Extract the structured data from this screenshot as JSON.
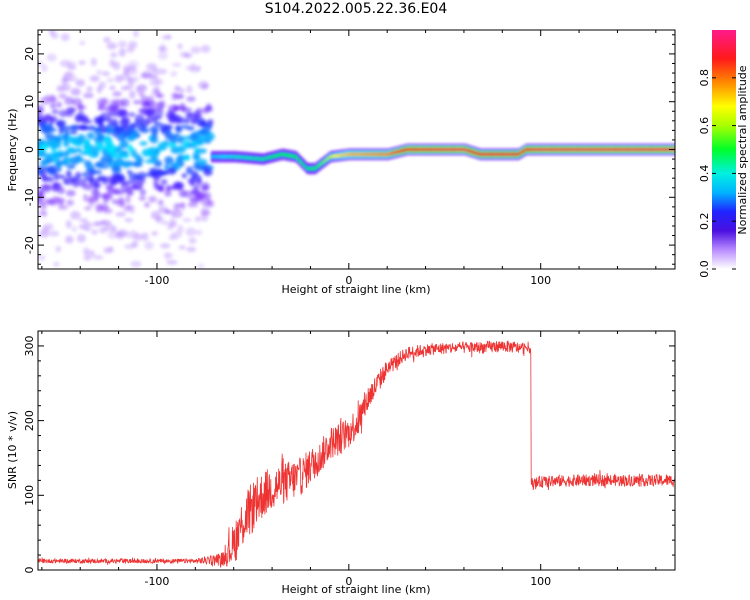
{
  "title": "S104.2022.005.22.36.E04",
  "colorbar": {
    "label": "Normalized spectral amplitude",
    "ticks": [
      "0.0",
      "0.2",
      "0.4",
      "0.6",
      "0.8"
    ],
    "tick_values": [
      0.0,
      0.2,
      0.4,
      0.6,
      0.8
    ],
    "range": [
      0.0,
      1.0
    ],
    "colors": [
      "#ffffff",
      "#7a2cff",
      "#2a23ff",
      "#00e5ff",
      "#00ff44",
      "#ffff00",
      "#ff7f00",
      "#ff0033",
      "#ff1a8c"
    ]
  },
  "chart_data": [
    {
      "type": "heatmap",
      "xlabel": "Height of straight line (km)",
      "ylabel": "Frequency (Hz)",
      "xlim": [
        -162,
        170
      ],
      "ylim": [
        -25,
        25
      ],
      "x_ticks": [
        "-100",
        "0",
        "100"
      ],
      "x_tick_values": [
        -100,
        0,
        100
      ],
      "y_ticks": [
        "-20",
        "-10",
        "0",
        "10",
        "20"
      ],
      "y_tick_values": [
        -20,
        -10,
        0,
        10,
        20
      ],
      "ridge": {
        "x": [
          -72,
          -60,
          -45,
          -35,
          -28,
          -22,
          -18,
          -10,
          0,
          20,
          30,
          60,
          68,
          88,
          92,
          100,
          140,
          170
        ],
        "y": [
          -1.5,
          -1.5,
          -2,
          -1,
          -1.5,
          -4,
          -4,
          -1.5,
          -1,
          -1,
          0,
          0,
          -1,
          -1,
          0,
          0,
          0,
          0
        ],
        "amplitude": [
          0.35,
          0.4,
          0.45,
          0.5,
          0.5,
          0.45,
          0.5,
          0.6,
          0.7,
          0.75,
          0.9,
          0.95,
          0.85,
          0.85,
          0.9,
          0.95,
          0.95,
          0.95
        ]
      },
      "scatter_region": {
        "x": [
          -162,
          -72
        ],
        "y": [
          -25,
          25
        ],
        "amplitude": [
          0.05,
          0.3
        ]
      }
    },
    {
      "type": "line",
      "xlabel": "Height of straight line (km)",
      "ylabel": "SNR (10 * v/v)",
      "xlim": [
        -162,
        170
      ],
      "ylim": [
        0,
        320
      ],
      "x_ticks": [
        "-100",
        "0",
        "100"
      ],
      "x_tick_values": [
        -100,
        0,
        100
      ],
      "y_ticks": [
        "0",
        "100",
        "200",
        "300"
      ],
      "y_tick_values": [
        0,
        100,
        200,
        300
      ],
      "series": [
        {
          "color": "#ee3333",
          "x": [
            -162,
            -120,
            -80,
            -65,
            -60,
            -55,
            -50,
            -45,
            -40,
            -35,
            -30,
            -25,
            -20,
            -15,
            -10,
            -5,
            0,
            5,
            10,
            15,
            20,
            25,
            30,
            40,
            50,
            60,
            70,
            80,
            90,
            94,
            95,
            96,
            100,
            120,
            140,
            160,
            170
          ],
          "y": [
            12,
            12,
            12,
            15,
            35,
            65,
            85,
            100,
            110,
            115,
            120,
            125,
            140,
            150,
            170,
            175,
            185,
            200,
            230,
            250,
            270,
            280,
            290,
            295,
            297,
            298,
            298,
            300,
            297,
            298,
            115,
            115,
            118,
            120,
            120,
            120,
            120
          ],
          "noise": [
            3,
            3,
            3,
            10,
            30,
            35,
            35,
            32,
            30,
            28,
            28,
            26,
            24,
            22,
            22,
            22,
            22,
            22,
            18,
            15,
            12,
            10,
            9,
            8,
            8,
            8,
            8,
            8,
            8,
            8,
            8,
            8,
            8,
            8,
            8,
            8,
            8
          ]
        }
      ]
    }
  ]
}
